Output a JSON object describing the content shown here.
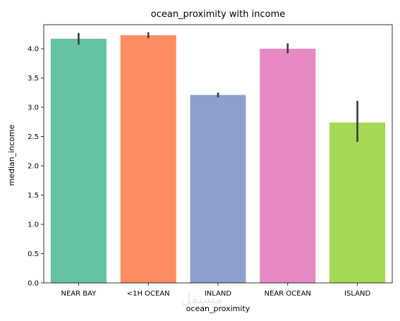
{
  "chart_data": {
    "type": "bar",
    "title": "ocean_proximity with income",
    "xlabel": "ocean_proximity",
    "ylabel": "median_income",
    "categories": [
      "NEAR BAY",
      "<1H OCEAN",
      "INLAND",
      "NEAR OCEAN",
      "ISLAND"
    ],
    "values": [
      4.17,
      4.23,
      3.21,
      4.0,
      2.74
    ],
    "error_low": [
      4.07,
      4.18,
      3.17,
      3.92,
      2.41
    ],
    "error_high": [
      4.27,
      4.28,
      3.25,
      4.09,
      3.11
    ],
    "colors": [
      "#66c2a5",
      "#fc8d62",
      "#8da0cb",
      "#e78ac3",
      "#a6d854"
    ],
    "ylim": [
      0,
      4.41
    ],
    "yticks": [
      "0.0",
      "0.5",
      "1.0",
      "1.5",
      "2.0",
      "2.5",
      "3.0",
      "3.5",
      "4.0"
    ],
    "grid": false,
    "legend": "none"
  },
  "watermark": "مستقل"
}
